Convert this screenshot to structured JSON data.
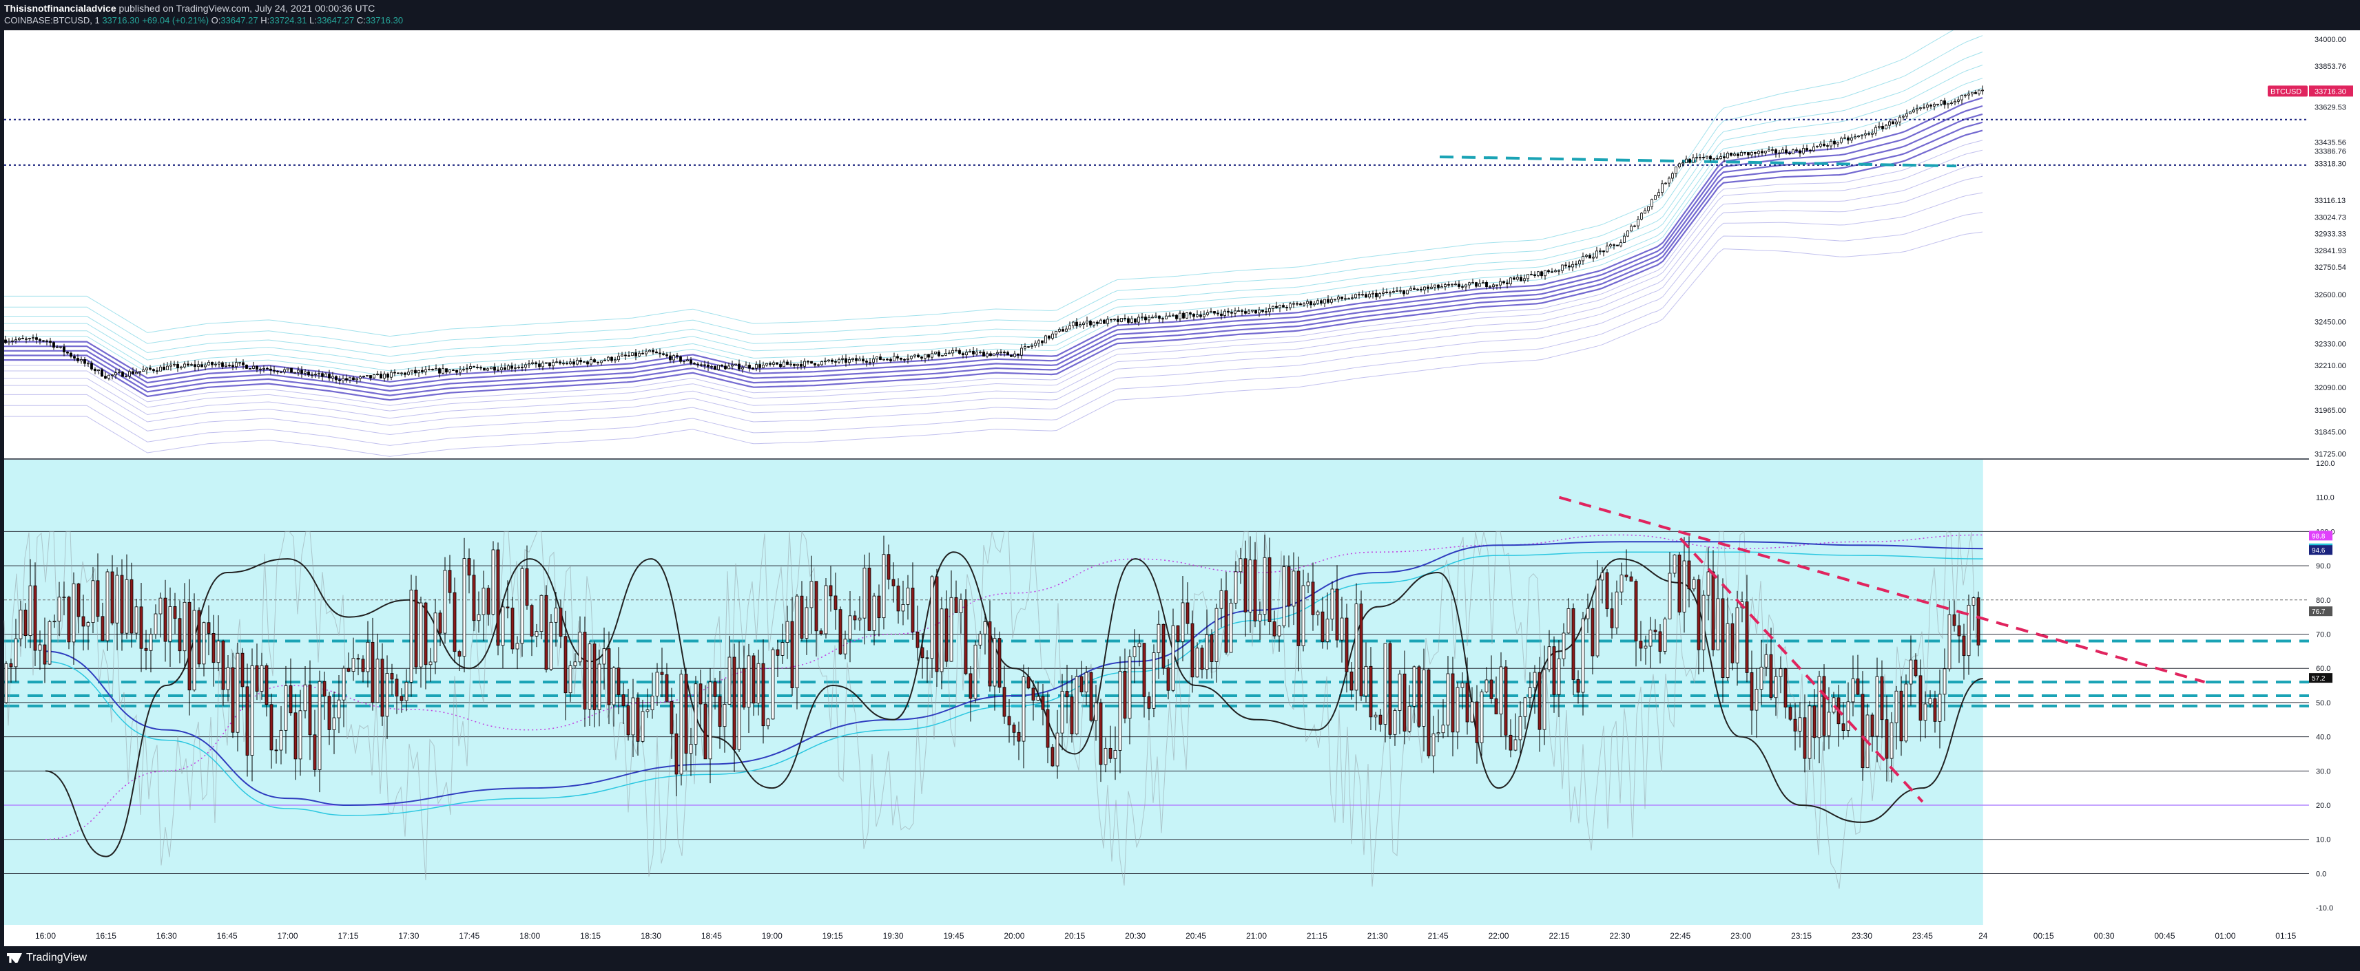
{
  "header": {
    "author": "Thisisnotfinancialadvice",
    "published": "published on TradingView.com, July 24, 2021 00:00:36 UTC",
    "symbol": "COINBASE:BTCUSD, 1",
    "last": "33716.30",
    "change": "+69.04 (+0.21%)",
    "open_label": "O:",
    "open": "33647.27",
    "high_label": "H:",
    "high": "33724.31",
    "low_label": "L:",
    "low": "33647.27",
    "close_label": "C:",
    "close": "33716.30"
  },
  "footer": {
    "brand": "TradingView"
  },
  "colors": {
    "background": "#ffffff",
    "panel_bg": "#c8f4f8",
    "up_candle": "#ffffff",
    "down_candle": "#8b1a1a",
    "price_line": "#000000",
    "ribbon": "#7b6fd6",
    "trend_dashed_red": "#e0245e",
    "trend_dashed_cyan": "#1aa3b5",
    "last_price_badge": "#e0245e"
  },
  "chart_data": [
    {
      "type": "line",
      "panel": "price",
      "symbol_badge": "BTCUSD",
      "last_price": "33716.30",
      "y_ticks": [
        "34000.00",
        "33853.76",
        "33629.53",
        "33435.56",
        "33386.76",
        "33318.30",
        "33116.13",
        "33024.73",
        "32933.33",
        "32841.93",
        "32750.54",
        "32600.00",
        "32450.00",
        "32330.00",
        "32210.00",
        "32090.00",
        "31965.00",
        "31845.00",
        "31725.00"
      ],
      "ylim": [
        31700,
        34050
      ],
      "x_ticks": [
        "16:00",
        "16:15",
        "16:30",
        "16:45",
        "17:00",
        "17:15",
        "17:30",
        "17:45",
        "18:00",
        "18:15",
        "18:30",
        "18:45",
        "19:00",
        "19:15",
        "19:30",
        "19:45",
        "20:00",
        "20:15",
        "20:30",
        "20:45",
        "21:00",
        "21:15",
        "21:30",
        "21:45",
        "22:00",
        "22:15",
        "22:30",
        "22:45",
        "23:00",
        "23:15",
        "23:30",
        "23:45",
        "24",
        "00:15",
        "00:30",
        "00:45",
        "01:00",
        "01:15"
      ],
      "price_points": [
        {
          "x": "16:00",
          "y": 32350
        },
        {
          "x": "16:15",
          "y": 32150
        },
        {
          "x": "16:30",
          "y": 32200
        },
        {
          "x": "16:45",
          "y": 32220
        },
        {
          "x": "17:00",
          "y": 32180
        },
        {
          "x": "17:15",
          "y": 32130
        },
        {
          "x": "17:30",
          "y": 32170
        },
        {
          "x": "17:45",
          "y": 32190
        },
        {
          "x": "18:00",
          "y": 32210
        },
        {
          "x": "18:15",
          "y": 32230
        },
        {
          "x": "18:30",
          "y": 32280
        },
        {
          "x": "18:45",
          "y": 32200
        },
        {
          "x": "19:00",
          "y": 32210
        },
        {
          "x": "19:15",
          "y": 32230
        },
        {
          "x": "19:30",
          "y": 32250
        },
        {
          "x": "19:45",
          "y": 32280
        },
        {
          "x": "20:00",
          "y": 32270
        },
        {
          "x": "20:15",
          "y": 32440
        },
        {
          "x": "20:30",
          "y": 32460
        },
        {
          "x": "20:45",
          "y": 32490
        },
        {
          "x": "21:00",
          "y": 32510
        },
        {
          "x": "21:15",
          "y": 32560
        },
        {
          "x": "21:30",
          "y": 32600
        },
        {
          "x": "21:45",
          "y": 32640
        },
        {
          "x": "22:00",
          "y": 32660
        },
        {
          "x": "22:15",
          "y": 32740
        },
        {
          "x": "22:30",
          "y": 32880
        },
        {
          "x": "22:45",
          "y": 33330
        },
        {
          "x": "23:00",
          "y": 33370
        },
        {
          "x": "23:15",
          "y": 33390
        },
        {
          "x": "23:30",
          "y": 33470
        },
        {
          "x": "23:45",
          "y": 33620
        },
        {
          "x": "24",
          "y": 33716
        }
      ],
      "horizontal_levels": [
        33560,
        33310
      ]
    },
    {
      "type": "line",
      "panel": "oscillator",
      "y_ticks": [
        "120.0",
        "110.0",
        "100.0",
        "90.0",
        "80.0",
        "70.0",
        "60.0",
        "50.0",
        "40.0",
        "30.0",
        "20.0",
        "10.0",
        "0.0",
        "-10.0"
      ],
      "ylim": [
        -15,
        121
      ],
      "value_badges": [
        "98.8",
        "95.1",
        "94.6",
        "76.7",
        "57.2"
      ],
      "horizontal_levels": [
        100,
        90,
        80,
        70,
        60,
        50,
        40,
        30,
        20,
        10,
        0
      ],
      "slow_line": [
        {
          "x": "16:00",
          "y": 65
        },
        {
          "x": "16:30",
          "y": 42
        },
        {
          "x": "17:00",
          "y": 22
        },
        {
          "x": "17:15",
          "y": 20
        },
        {
          "x": "18:00",
          "y": 25
        },
        {
          "x": "18:45",
          "y": 32
        },
        {
          "x": "19:30",
          "y": 45
        },
        {
          "x": "20:00",
          "y": 52
        },
        {
          "x": "20:30",
          "y": 62
        },
        {
          "x": "21:00",
          "y": 77
        },
        {
          "x": "21:30",
          "y": 88
        },
        {
          "x": "22:00",
          "y": 96
        },
        {
          "x": "22:30",
          "y": 97
        },
        {
          "x": "23:00",
          "y": 97
        },
        {
          "x": "23:30",
          "y": 96
        },
        {
          "x": "24",
          "y": 95
        }
      ],
      "fast_line": [
        {
          "x": "16:00",
          "y": 30
        },
        {
          "x": "16:15",
          "y": 5
        },
        {
          "x": "16:30",
          "y": 55
        },
        {
          "x": "16:45",
          "y": 88
        },
        {
          "x": "17:00",
          "y": 92
        },
        {
          "x": "17:15",
          "y": 75
        },
        {
          "x": "17:30",
          "y": 80
        },
        {
          "x": "17:45",
          "y": 60
        },
        {
          "x": "18:00",
          "y": 92
        },
        {
          "x": "18:15",
          "y": 62
        },
        {
          "x": "18:30",
          "y": 92
        },
        {
          "x": "18:45",
          "y": 40
        },
        {
          "x": "19:00",
          "y": 25
        },
        {
          "x": "19:15",
          "y": 55
        },
        {
          "x": "19:30",
          "y": 45
        },
        {
          "x": "19:45",
          "y": 94
        },
        {
          "x": "20:00",
          "y": 60
        },
        {
          "x": "20:15",
          "y": 35
        },
        {
          "x": "20:30",
          "y": 92
        },
        {
          "x": "20:45",
          "y": 55
        },
        {
          "x": "21:00",
          "y": 45
        },
        {
          "x": "21:15",
          "y": 42
        },
        {
          "x": "21:30",
          "y": 78
        },
        {
          "x": "21:45",
          "y": 88
        },
        {
          "x": "22:00",
          "y": 25
        },
        {
          "x": "22:15",
          "y": 65
        },
        {
          "x": "22:30",
          "y": 92
        },
        {
          "x": "22:45",
          "y": 85
        },
        {
          "x": "23:00",
          "y": 40
        },
        {
          "x": "23:15",
          "y": 20
        },
        {
          "x": "23:30",
          "y": 15
        },
        {
          "x": "23:45",
          "y": 25
        },
        {
          "x": "24",
          "y": 57
        }
      ],
      "dotted_line": [
        {
          "x": "16:00",
          "y": 10
        },
        {
          "x": "16:30",
          "y": 30
        },
        {
          "x": "17:00",
          "y": 55
        },
        {
          "x": "17:30",
          "y": 48
        },
        {
          "x": "18:00",
          "y": 42
        },
        {
          "x": "18:30",
          "y": 50
        },
        {
          "x": "19:00",
          "y": 60
        },
        {
          "x": "19:30",
          "y": 70
        },
        {
          "x": "20:00",
          "y": 82
        },
        {
          "x": "20:30",
          "y": 92
        },
        {
          "x": "21:00",
          "y": 88
        },
        {
          "x": "21:30",
          "y": 94
        },
        {
          "x": "22:00",
          "y": 96
        },
        {
          "x": "22:30",
          "y": 99
        },
        {
          "x": "23:00",
          "y": 95
        },
        {
          "x": "23:30",
          "y": 97
        },
        {
          "x": "24",
          "y": 99
        }
      ],
      "red_trendlines": [
        {
          "from": {
            "x": "22:15",
            "y": 110
          },
          "to": {
            "x": "00:55",
            "y": 56
          }
        },
        {
          "from": {
            "x": "22:45",
            "y": 98
          },
          "to": {
            "x": "23:45",
            "y": 21
          }
        }
      ],
      "cyan_levels": [
        68,
        56,
        52,
        49
      ]
    }
  ]
}
